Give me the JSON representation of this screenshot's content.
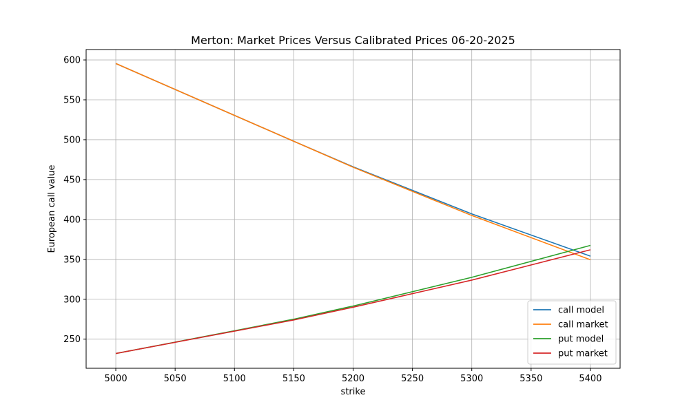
{
  "chart_data": {
    "type": "line",
    "title": "Merton: Market Prices Versus Calibrated Prices 06-20-2025",
    "xlabel": "strike",
    "ylabel": "European call value",
    "xlim": [
      4975,
      5425
    ],
    "ylim": [
      213.5,
      613
    ],
    "xticks": [
      5000,
      5050,
      5100,
      5150,
      5200,
      5250,
      5300,
      5350,
      5400
    ],
    "yticks": [
      250,
      300,
      350,
      400,
      450,
      500,
      550,
      600
    ],
    "grid": true,
    "legend": "lower right",
    "x": [
      5000,
      5100,
      5150,
      5200,
      5300,
      5400
    ],
    "series": [
      {
        "name": "call model",
        "color": "#1f77b4",
        "values": [
          595.5,
          530.5,
          498.0,
          466.0,
          407.0,
          354.0
        ]
      },
      {
        "name": "call market",
        "color": "#ff7f0e",
        "values": [
          595.5,
          530.5,
          498.0,
          465.5,
          405.0,
          349.5
        ]
      },
      {
        "name": "put model",
        "color": "#2ca02c",
        "values": [
          232.0,
          260.5,
          275.0,
          291.5,
          327.5,
          367.5
        ]
      },
      {
        "name": "put market",
        "color": "#d62728",
        "values": [
          232.0,
          260.0,
          274.0,
          290.0,
          324.0,
          362.0
        ]
      }
    ]
  }
}
